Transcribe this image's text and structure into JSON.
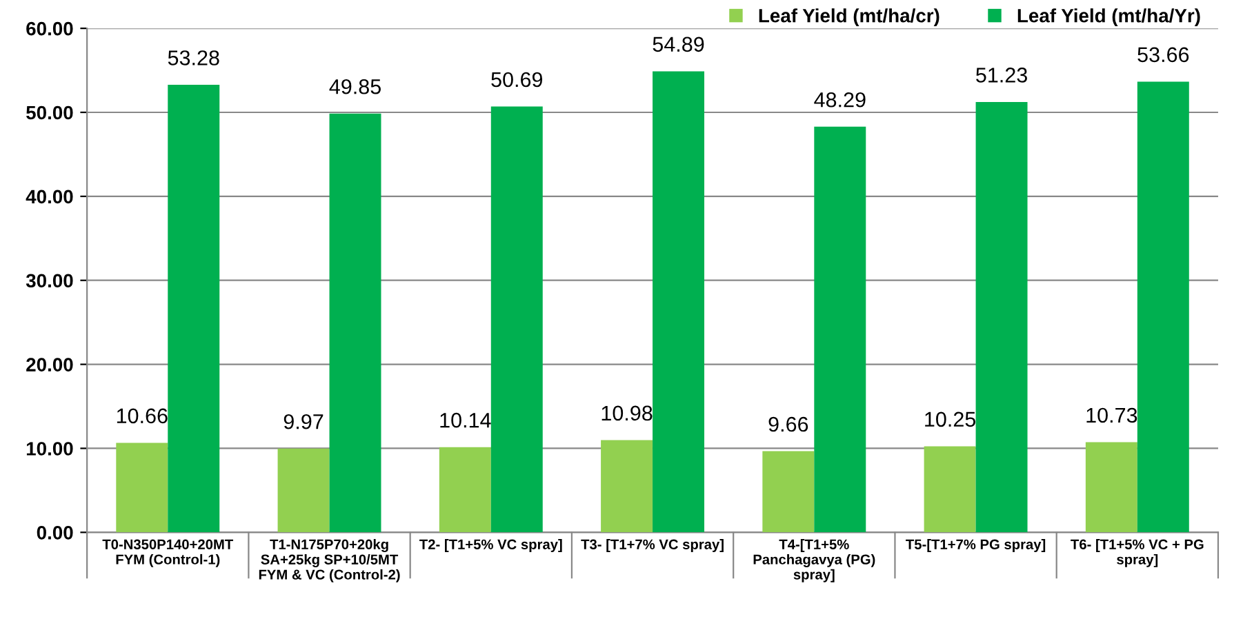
{
  "chart_data": {
    "type": "bar",
    "categories": [
      "T0-N350P140+20MT\nFYM (Control-1)",
      "T1-N175P70+20kg\nSA+25kg SP+10/5MT\nFYM & VC (Control-2)",
      "T2- [T1+5% VC spray]",
      "T3- [T1+7% VC spray]",
      "T4-[T1+5%\nPanchagavya (PG)\nspray]",
      "T5-[T1+7% PG spray]",
      "T6- [T1+5% VC + PG\nspray]"
    ],
    "series": [
      {
        "name": "Leaf Yield (mt/ha/cr)",
        "color": "#92d050",
        "values": [
          10.66,
          9.97,
          10.14,
          10.98,
          9.66,
          10.25,
          10.73
        ],
        "value_labels": [
          "10.66",
          "9.97",
          "10.14",
          "10.98",
          "9.66",
          "10.25",
          "10.73"
        ]
      },
      {
        "name": "Leaf Yield (mt/ha/Yr)",
        "color": "#00b050",
        "values": [
          53.28,
          49.85,
          50.69,
          54.89,
          48.29,
          51.23,
          53.66
        ],
        "value_labels": [
          "53.28",
          "49.85",
          "50.69",
          "54.89",
          "48.29",
          "51.23",
          "53.66"
        ]
      }
    ],
    "ylim": [
      0,
      60
    ],
    "yticks": [
      {
        "value": 0,
        "label": "0.00"
      },
      {
        "value": 10,
        "label": "10.00"
      },
      {
        "value": 20,
        "label": "20.00"
      },
      {
        "value": 30,
        "label": "30.00"
      },
      {
        "value": 40,
        "label": "40.00"
      },
      {
        "value": 50,
        "label": "50.00"
      },
      {
        "value": 60,
        "label": "60.00"
      }
    ],
    "grid": "y",
    "legend": "top right"
  }
}
